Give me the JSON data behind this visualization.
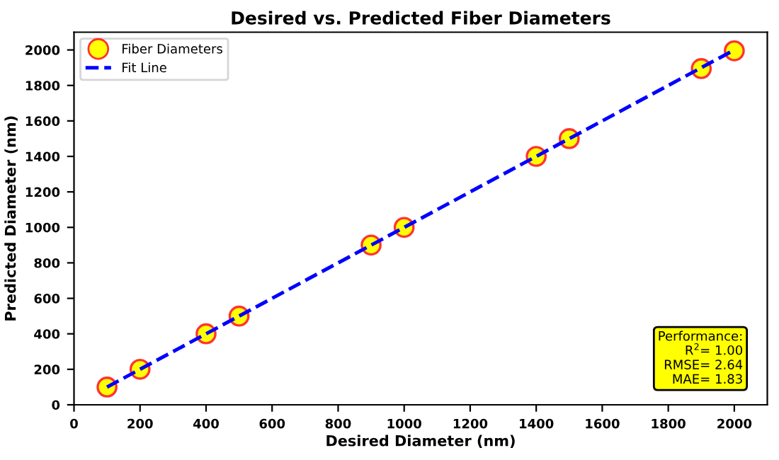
{
  "chart_data": {
    "type": "scatter",
    "title": "Desired vs. Predicted Fiber Diameters",
    "xlabel": "Desired Diameter (nm)",
    "ylabel": "Predicted Diameter (nm)",
    "x": [
      100,
      200,
      400,
      500,
      900,
      1000,
      1400,
      1500,
      1900,
      2000
    ],
    "series": [
      {
        "name": "Fiber Diameters",
        "color": "#ffff00",
        "marker": "circle",
        "values": [
          100,
          200,
          400,
          500,
          900,
          1000,
          1400,
          1500,
          1895,
          1995
        ]
      },
      {
        "name": "Fit Line",
        "type": "line",
        "color": "#0000ff",
        "line_style": "dashed",
        "marker": "none",
        "x": [
          100,
          2000
        ],
        "values": [
          100,
          2000
        ]
      }
    ],
    "xlim": [
      0,
      2100
    ],
    "ylim": [
      0,
      2100
    ],
    "xticks": [
      0,
      200,
      400,
      600,
      800,
      1000,
      1200,
      1400,
      1600,
      1800,
      2000
    ],
    "yticks": [
      0,
      200,
      400,
      600,
      800,
      1000,
      1200,
      1400,
      1600,
      1800,
      2000
    ],
    "grid": false,
    "legend": "top left",
    "annotations": [
      "Performance:\nR$^{2}$= 1.00\nRMSE= 2.64\nMAE= 1.83"
    ]
  }
}
